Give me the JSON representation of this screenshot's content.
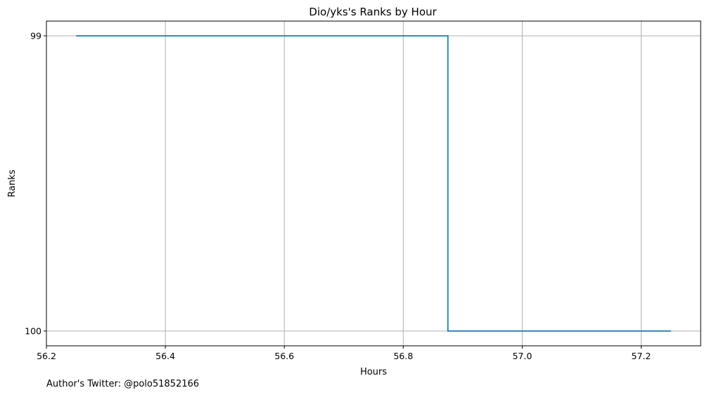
{
  "chart_data": {
    "type": "line",
    "title": "Dio/yks's Ranks by Hour",
    "xlabel": "Hours",
    "ylabel": "Ranks",
    "xlim": [
      56.2,
      57.3
    ],
    "x_ticks": [
      56.2,
      56.4,
      56.6,
      56.8,
      57.0,
      57.2
    ],
    "x_tick_labels": [
      "56.2",
      "56.4",
      "56.6",
      "56.8",
      "57.0",
      "57.2"
    ],
    "y_ticks": [
      99,
      100
    ],
    "y_tick_labels": [
      "99",
      "100"
    ],
    "y_inverted": true,
    "grid": true,
    "step": "post",
    "series": [
      {
        "x": [
          56.25,
          56.875,
          57.25
        ],
        "values": [
          99,
          100,
          100
        ],
        "color": "#1f77b4"
      }
    ]
  },
  "footer": {
    "credit": "Author's Twitter: @polo51852166"
  }
}
